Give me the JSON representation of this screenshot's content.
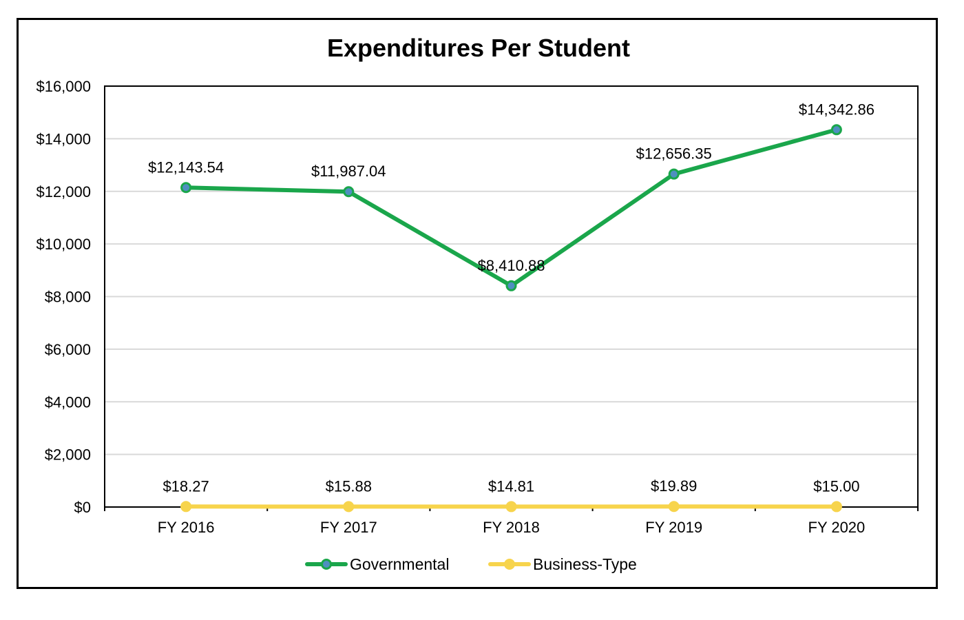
{
  "chart_data": {
    "type": "line",
    "title": "Expenditures Per Student",
    "xlabel": "",
    "ylabel": "",
    "categories": [
      "FY 2016",
      "FY 2017",
      "FY 2018",
      "FY 2019",
      "FY 2020"
    ],
    "ylim": [
      0,
      16000
    ],
    "yticks": [
      0,
      2000,
      4000,
      6000,
      8000,
      10000,
      12000,
      14000,
      16000
    ],
    "ytick_labels": [
      "$0",
      "$2,000",
      "$4,000",
      "$6,000",
      "$8,000",
      "$10,000",
      "$12,000",
      "$14,000",
      "$16,000"
    ],
    "grid": true,
    "legend_position": "bottom",
    "series": [
      {
        "name": "Governmental",
        "color": "#1aa64b",
        "marker_color": "#4f8fc0",
        "values": [
          12143.54,
          11987.04,
          8410.88,
          12656.35,
          14342.86
        ],
        "labels": [
          "$12,143.54",
          "$11,987.04",
          "$8,410.88",
          "$12,656.35",
          "$14,342.86"
        ]
      },
      {
        "name": "Business-Type",
        "color": "#f7d44c",
        "marker_color": "#f7d44c",
        "values": [
          18.27,
          15.88,
          14.81,
          19.89,
          15.0
        ],
        "labels": [
          "$18.27",
          "$15.88",
          "$14.81",
          "$19.89",
          "$15.00"
        ]
      }
    ]
  }
}
